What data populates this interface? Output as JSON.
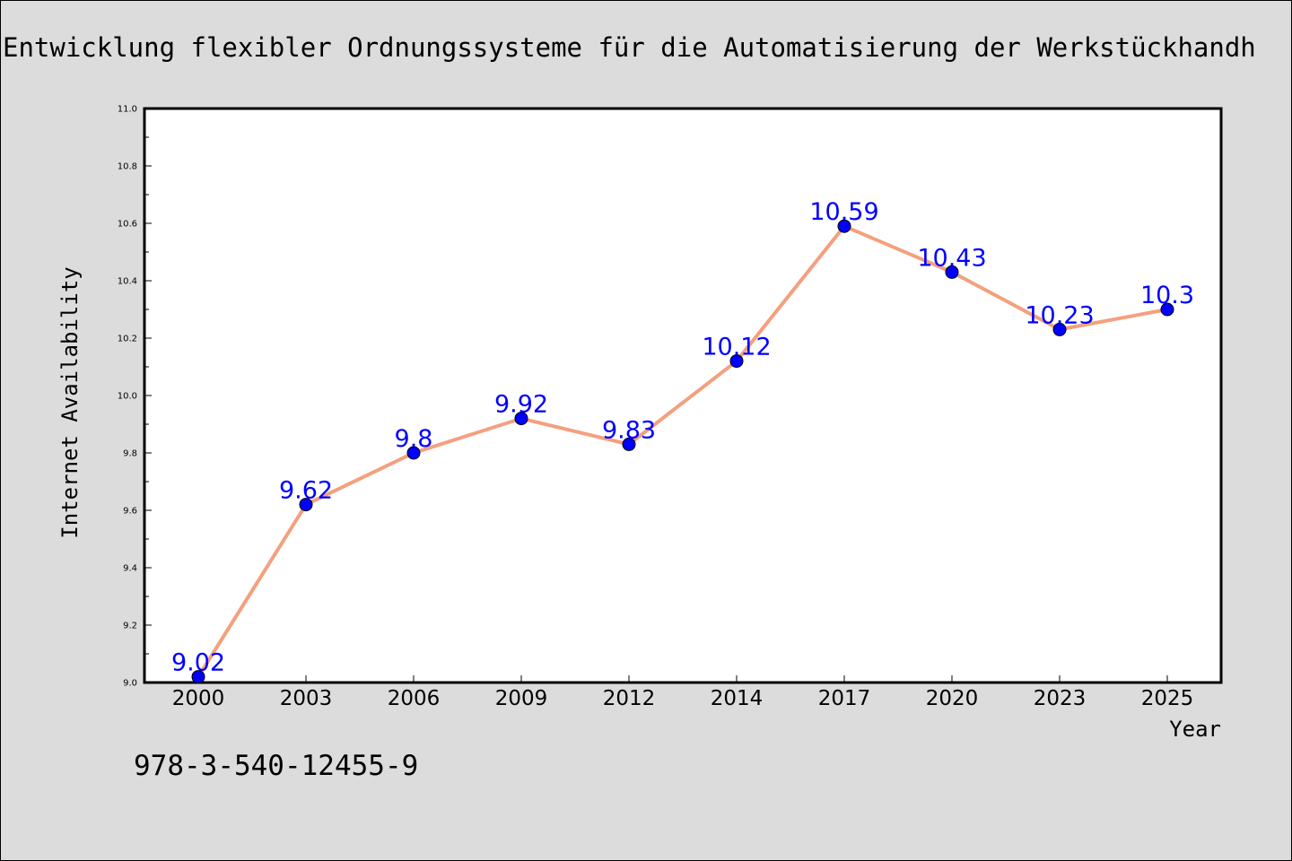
{
  "page": {
    "title": "Entwicklung flexibler Ordnungssysteme für die Automatisierung der Werkstückhandh",
    "note": "978-3-540-12455-9"
  },
  "chart_data": {
    "type": "line",
    "title": "Entwicklung flexibler Ordnungssysteme für die Automatisierung der Werkstückhandh",
    "xlabel": "Year",
    "ylabel": "Internet Availability",
    "categories": [
      "2000",
      "2003",
      "2006",
      "2009",
      "2012",
      "2014",
      "2017",
      "2020",
      "2023",
      "2025"
    ],
    "series": [
      {
        "values": [
          9.02,
          9.62,
          9.8,
          9.92,
          9.83,
          10.12,
          10.59,
          10.43,
          10.23,
          10.3
        ],
        "labels": [
          "9.02",
          "9.62",
          "9.8",
          "9.92",
          "9.83",
          "10.12",
          "10.59",
          "10.43",
          "10.23",
          "10.3"
        ]
      }
    ],
    "ylim": [
      9.0,
      11.0
    ],
    "yticks": [
      "9.0",
      "9.2",
      "9.4",
      "9.6",
      "9.8",
      "10.0",
      "10.2",
      "10.4",
      "10.6",
      "10.8",
      "11.0"
    ],
    "grid": false,
    "colors": {
      "line": "#f4a07e",
      "marker": "#0000ff",
      "data_label": "#0000ff",
      "plot_background": "#ffffff",
      "page_background": "#dcdcdc"
    }
  }
}
